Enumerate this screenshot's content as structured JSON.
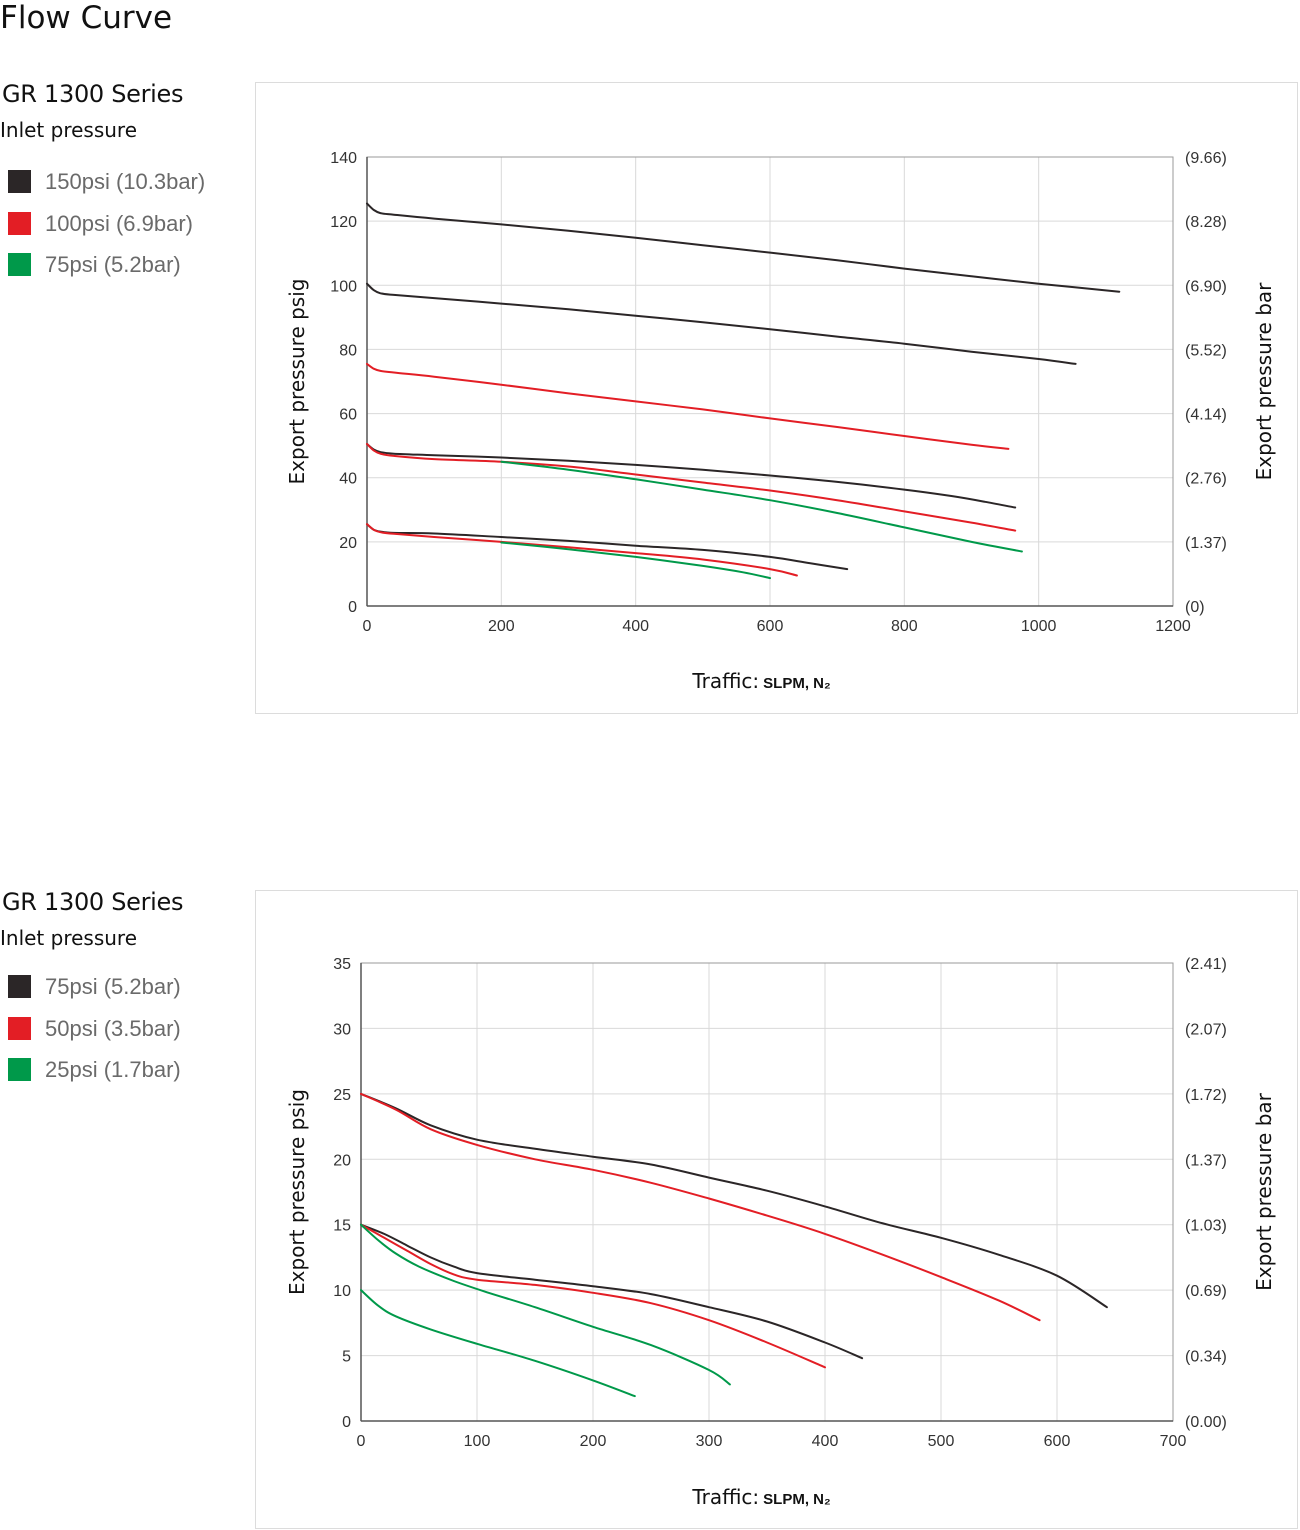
{
  "page": {
    "title": "Flow Curve"
  },
  "blocks": [
    {
      "series_title": "GR 1300 Series",
      "legend_heading": "Inlet pressure",
      "legend": [
        {
          "label": "150psi (10.3bar)",
          "color": "#2b2627"
        },
        {
          "label": "100psi (6.9bar)",
          "color": "#e31e25"
        },
        {
          "label": "75psi (5.2bar)",
          "color": "#00994a"
        }
      ],
      "x_axis": {
        "label": "Traffic:",
        "unit": "SLPM, N₂",
        "ticks": [
          "0",
          "200",
          "400",
          "600",
          "800",
          "1000",
          "1200"
        ]
      },
      "y_axis": {
        "label": "Export pressure psig",
        "ticks": [
          "0",
          "20",
          "40",
          "60",
          "80",
          "100",
          "120",
          "140"
        ]
      },
      "y2_axis": {
        "label": "Export pressure bar",
        "ticks": [
          "(0)",
          "(1.37)",
          "(2.76)",
          "(4.14)",
          "(5.52)",
          "(6.90)",
          "(8.28)",
          "(9.66)"
        ]
      }
    },
    {
      "series_title": "GR 1300 Series",
      "legend_heading": "Inlet pressure",
      "legend": [
        {
          "label": "75psi (5.2bar)",
          "color": "#2b2627"
        },
        {
          "label": "50psi (3.5bar)",
          "color": "#e31e25"
        },
        {
          "label": "25psi (1.7bar)",
          "color": "#00994a"
        }
      ],
      "x_axis": {
        "label": "Traffic:",
        "unit": "SLPM, N₂",
        "ticks": [
          "0",
          "100",
          "200",
          "300",
          "400",
          "500",
          "600",
          "700"
        ]
      },
      "y_axis": {
        "label": "Export pressure psig",
        "ticks": [
          "0",
          "5",
          "10",
          "15",
          "20",
          "25",
          "30",
          "35"
        ]
      },
      "y2_axis": {
        "label": "Export pressure bar",
        "ticks": [
          "(0.00)",
          "(0.34)",
          "(0.69)",
          "(1.03)",
          "(1.37)",
          "(1.72)",
          "(2.07)",
          "(2.41)"
        ]
      }
    }
  ],
  "chart_data": [
    {
      "type": "line",
      "xlabel": "Traffic: SLPM, N₂",
      "ylabel": "Export pressure psig",
      "y2label": "Export pressure bar",
      "xlim": [
        0,
        1200
      ],
      "ylim": [
        0,
        140
      ],
      "grid": true,
      "series": [
        {
          "name": "150psi (10.3bar)",
          "color": "#2b2627",
          "points": [
            [
              0,
              125.5
            ],
            [
              10,
              123.5
            ],
            [
              20,
              122.5
            ],
            [
              40,
              122
            ],
            [
              100,
              120.8
            ],
            [
              200,
              119
            ],
            [
              300,
              117
            ],
            [
              400,
              114.8
            ],
            [
              500,
              112.5
            ],
            [
              600,
              110.2
            ],
            [
              700,
              107.8
            ],
            [
              800,
              105.2
            ],
            [
              900,
              102.8
            ],
            [
              1000,
              100.5
            ],
            [
              1120,
              98
            ]
          ]
        },
        {
          "name": "150psi (10.3bar)",
          "color": "#2b2627",
          "points": [
            [
              0,
              100.5
            ],
            [
              10,
              98.5
            ],
            [
              20,
              97.5
            ],
            [
              40,
              97
            ],
            [
              100,
              96
            ],
            [
              200,
              94.3
            ],
            [
              300,
              92.5
            ],
            [
              400,
              90.5
            ],
            [
              500,
              88.5
            ],
            [
              600,
              86.3
            ],
            [
              700,
              84
            ],
            [
              800,
              81.8
            ],
            [
              900,
              79.3
            ],
            [
              1000,
              77
            ],
            [
              1055,
              75.5
            ]
          ]
        },
        {
          "name": "150psi (10.3bar)",
          "color": "#2b2627",
          "points": [
            [
              0,
              50.5
            ],
            [
              10,
              48.8
            ],
            [
              20,
              48
            ],
            [
              40,
              47.5
            ],
            [
              100,
              47
            ],
            [
              200,
              46.3
            ],
            [
              300,
              45.3
            ],
            [
              400,
              44
            ],
            [
              500,
              42.5
            ],
            [
              600,
              40.7
            ],
            [
              700,
              38.7
            ],
            [
              800,
              36.3
            ],
            [
              870,
              34.3
            ],
            [
              920,
              32.5
            ],
            [
              965,
              30.7
            ]
          ]
        },
        {
          "name": "150psi (10.3bar)",
          "color": "#2b2627",
          "points": [
            [
              0,
              25.5
            ],
            [
              10,
              23.8
            ],
            [
              20,
              23.2
            ],
            [
              40,
              22.8
            ],
            [
              100,
              22.6
            ],
            [
              200,
              21.5
            ],
            [
              300,
              20.3
            ],
            [
              400,
              18.8
            ],
            [
              500,
              17.5
            ],
            [
              600,
              15.3
            ],
            [
              660,
              13.3
            ],
            [
              715,
              11.5
            ]
          ]
        },
        {
          "name": "100psi (6.9bar)",
          "color": "#e31e25",
          "points": [
            [
              0,
              75.5
            ],
            [
              10,
              74
            ],
            [
              20,
              73.3
            ],
            [
              40,
              72.8
            ],
            [
              100,
              71.5
            ],
            [
              200,
              69
            ],
            [
              300,
              66.3
            ],
            [
              400,
              63.8
            ],
            [
              500,
              61.3
            ],
            [
              600,
              58.5
            ],
            [
              700,
              55.8
            ],
            [
              800,
              53
            ],
            [
              900,
              50.3
            ],
            [
              955,
              49
            ]
          ]
        },
        {
          "name": "100psi (6.9bar)",
          "color": "#e31e25",
          "points": [
            [
              0,
              50.5
            ],
            [
              10,
              48.5
            ],
            [
              20,
              47.5
            ],
            [
              40,
              46.8
            ],
            [
              100,
              45.8
            ],
            [
              200,
              45
            ],
            [
              300,
              43.5
            ],
            [
              400,
              41
            ],
            [
              500,
              38.5
            ],
            [
              600,
              36
            ],
            [
              700,
              33
            ],
            [
              800,
              29.5
            ],
            [
              900,
              26
            ],
            [
              965,
              23.5
            ]
          ]
        },
        {
          "name": "100psi (6.9bar)",
          "color": "#e31e25",
          "points": [
            [
              0,
              25.5
            ],
            [
              10,
              23.8
            ],
            [
              20,
              23
            ],
            [
              40,
              22.5
            ],
            [
              100,
              21.5
            ],
            [
              200,
              20
            ],
            [
              300,
              18.3
            ],
            [
              400,
              16.5
            ],
            [
              500,
              14.5
            ],
            [
              600,
              11.5
            ],
            [
              640,
              9.5
            ]
          ]
        },
        {
          "name": "75psi (5.2bar)",
          "color": "#00994a",
          "points": [
            [
              200,
              45
            ],
            [
              300,
              42.5
            ],
            [
              400,
              39.5
            ],
            [
              500,
              36.3
            ],
            [
              600,
              33
            ],
            [
              700,
              29
            ],
            [
              800,
              24.5
            ],
            [
              900,
              20
            ],
            [
              975,
              17
            ]
          ]
        },
        {
          "name": "75psi (5.2bar)",
          "color": "#00994a",
          "points": [
            [
              200,
              19.8
            ],
            [
              300,
              17.7
            ],
            [
              400,
              15.3
            ],
            [
              500,
              12.5
            ],
            [
              560,
              10.5
            ],
            [
              600,
              8.7
            ]
          ]
        }
      ]
    },
    {
      "type": "line",
      "xlabel": "Traffic: SLPM, N₂",
      "ylabel": "Export pressure psig",
      "y2label": "Export pressure bar",
      "xlim": [
        0,
        700
      ],
      "ylim": [
        0,
        35
      ],
      "grid": true,
      "series": [
        {
          "name": "75psi (5.2bar)",
          "color": "#2b2627",
          "points": [
            [
              0,
              25
            ],
            [
              30,
              23.9
            ],
            [
              60,
              22.6
            ],
            [
              100,
              21.5
            ],
            [
              150,
              20.8
            ],
            [
              200,
              20.2
            ],
            [
              250,
              19.6
            ],
            [
              300,
              18.6
            ],
            [
              350,
              17.6
            ],
            [
              400,
              16.4
            ],
            [
              450,
              15.1
            ],
            [
              500,
              14
            ],
            [
              550,
              12.7
            ],
            [
              600,
              11.1
            ],
            [
              643,
              8.7
            ]
          ]
        },
        {
          "name": "75psi (5.2bar)",
          "color": "#2b2627",
          "points": [
            [
              0,
              15
            ],
            [
              20,
              14.3
            ],
            [
              40,
              13.4
            ],
            [
              60,
              12.5
            ],
            [
              80,
              11.8
            ],
            [
              100,
              11.3
            ],
            [
              150,
              10.8
            ],
            [
              200,
              10.3
            ],
            [
              250,
              9.7
            ],
            [
              300,
              8.7
            ],
            [
              350,
              7.6
            ],
            [
              400,
              6
            ],
            [
              432,
              4.8
            ]
          ]
        },
        {
          "name": "50psi (3.5bar)",
          "color": "#e31e25",
          "points": [
            [
              0,
              25
            ],
            [
              30,
              23.8
            ],
            [
              60,
              22.3
            ],
            [
              100,
              21.1
            ],
            [
              150,
              20
            ],
            [
              200,
              19.2
            ],
            [
              250,
              18.2
            ],
            [
              300,
              17
            ],
            [
              350,
              15.7
            ],
            [
              400,
              14.3
            ],
            [
              450,
              12.7
            ],
            [
              500,
              11
            ],
            [
              550,
              9.2
            ],
            [
              585,
              7.7
            ]
          ]
        },
        {
          "name": "50psi (3.5bar)",
          "color": "#e31e25",
          "points": [
            [
              0,
              15
            ],
            [
              20,
              14
            ],
            [
              40,
              13
            ],
            [
              60,
              12
            ],
            [
              80,
              11.2
            ],
            [
              100,
              10.8
            ],
            [
              150,
              10.4
            ],
            [
              200,
              9.8
            ],
            [
              250,
              9
            ],
            [
              300,
              7.7
            ],
            [
              350,
              6
            ],
            [
              400,
              4.1
            ]
          ]
        },
        {
          "name": "25psi (1.7bar)",
          "color": "#00994a",
          "points": [
            [
              0,
              15
            ],
            [
              15,
              13.8
            ],
            [
              30,
              12.8
            ],
            [
              50,
              11.8
            ],
            [
              80,
              10.7
            ],
            [
              110,
              9.8
            ],
            [
              150,
              8.7
            ],
            [
              200,
              7.2
            ],
            [
              250,
              5.8
            ],
            [
              300,
              3.9
            ],
            [
              318,
              2.8
            ]
          ]
        },
        {
          "name": "25psi (1.7bar)",
          "color": "#00994a",
          "points": [
            [
              0,
              10
            ],
            [
              15,
              8.8
            ],
            [
              30,
              8
            ],
            [
              60,
              7
            ],
            [
              100,
              5.9
            ],
            [
              150,
              4.6
            ],
            [
              200,
              3.1
            ],
            [
              236,
              1.9
            ]
          ]
        }
      ]
    }
  ]
}
